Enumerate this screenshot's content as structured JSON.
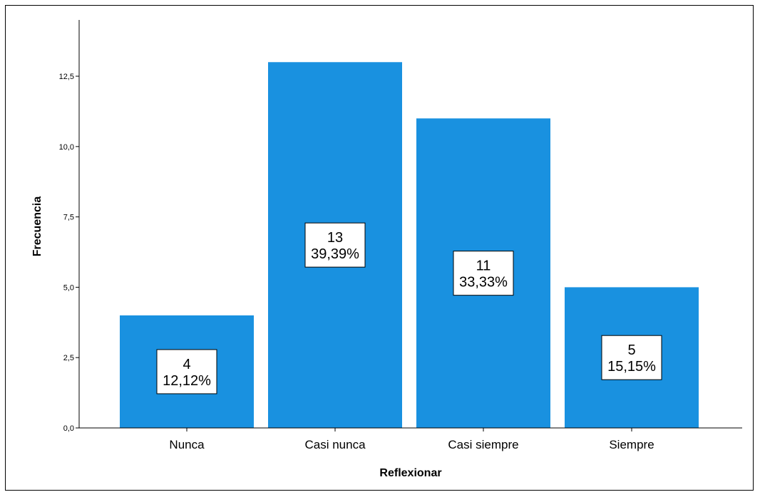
{
  "chart_data": {
    "type": "bar",
    "categories": [
      "Nunca",
      "Casi nunca",
      "Casi siempre",
      "Siempre"
    ],
    "values": [
      4,
      13,
      11,
      5
    ],
    "percent_labels": [
      "12,12%",
      "39,39%",
      "33,33%",
      "15,15%"
    ],
    "value_labels": [
      "4",
      "13",
      "11",
      "5"
    ],
    "xlabel": "Reflexionar",
    "ylabel": "Frecuencia",
    "ylim": [
      0,
      14.5
    ],
    "yticks": [
      0,
      2.5,
      5,
      7.5,
      10,
      12.5
    ],
    "ytick_labels": [
      "0,0",
      "2,5",
      "5,0",
      "7,5",
      "10,0",
      "12,5"
    ],
    "bar_color": "#1991e0",
    "grid": false
  }
}
